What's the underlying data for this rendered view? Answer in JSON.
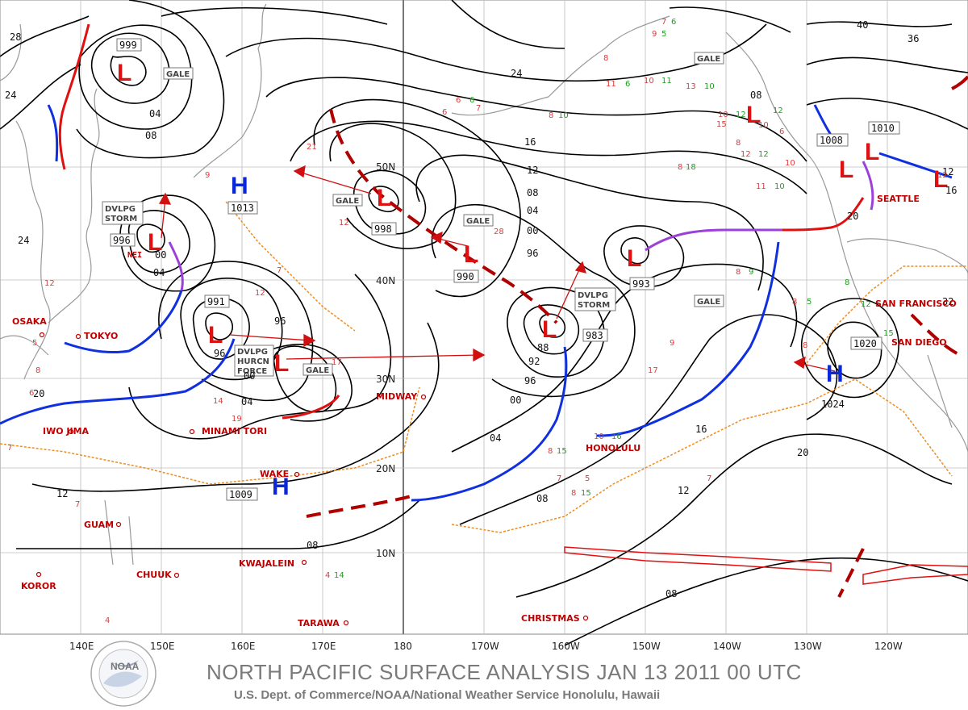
{
  "title": "NORTH PACIFIC SURFACE ANALYSIS JAN 13 2011 00 UTC",
  "subtitle": "U.S. Dept. of Commerce/NOAA/National Weather Service Honolulu, Hawaii",
  "logo_text": "NOAA",
  "longitude_labels": [
    "140E",
    "150E",
    "160E",
    "170E",
    "180",
    "170W",
    "160W",
    "150W",
    "140W",
    "130W",
    "120W"
  ],
  "latitude_labels": [
    "50N",
    "40N",
    "30N",
    "20N",
    "10N"
  ],
  "places": {
    "osaka": "OSAKA",
    "tokyo": "TOKYO",
    "iwojima": "IWO JIMA",
    "minamitori": "MINAMI TORI",
    "guam": "GUAM",
    "kwajalein": "KWAJALEIN",
    "chuuk": "CHUUK",
    "koror": "KOROR",
    "tarawa": "TARAWA",
    "wake": "WAKE",
    "midway": "MIDWAY",
    "honolulu": "HONOLULU",
    "christmas": "CHRISTMAS",
    "seattle": "SEATTLE",
    "sanfrancisco": "SAN FRANCISCO",
    "sandiego": "SAN DIEGO"
  },
  "boxed": {
    "gale1": "GALE",
    "gale2": "GALE",
    "gale3": "GALE",
    "gale4": "GALE",
    "gale5": "GALE",
    "gale6": "GALE",
    "dvlpg1a": "DVLPG",
    "dvlpg1b": "STORM",
    "dvlpg2a": "DVLPG",
    "dvlpg2b": "HURCN",
    "dvlpg2c": "FORCE",
    "dvlpg3a": "DVLPG",
    "dvlpg3b": "STORM",
    "p1013": "1013",
    "p998": "998",
    "p990": "990",
    "p993": "993",
    "p996": "996",
    "p983": "983",
    "p991": "991",
    "p1009": "1009",
    "p1010": "1010",
    "p1008": "1008",
    "p1020": "1020",
    "p999": "999",
    "p1024": "1024"
  },
  "isobar_labels": {
    "a28": "28",
    "a24w": "24",
    "a24n": "24",
    "a04": "04",
    "a08": "08",
    "a24c": "24",
    "a16": "16",
    "a12": "12",
    "a08b": "08",
    "a04b": "04",
    "a00": "00",
    "a96": "96",
    "a92": "92",
    "a88": "88",
    "a96b": "96",
    "a00b": "00",
    "a04c": "04",
    "a08c": "08",
    "a12b": "12",
    "a16b": "16",
    "a20": "20",
    "a24e": "24",
    "a20w": "20",
    "a12w": "12",
    "a16w": "16",
    "a08w": "08",
    "a40": "40",
    "a36": "36",
    "a32": "32",
    "a12e": "12",
    "a16e": "16",
    "a96c": "96",
    "a00c": "00",
    "a04d": "04",
    "a00d": "00",
    "a96d": "96",
    "a04e": "04",
    "a08e": "08",
    "a08f": "08",
    "nei": "NEI"
  },
  "symbols": {
    "low": "L",
    "high": "H"
  },
  "colors": {
    "isobar": "#000000",
    "cold_front": "#1030e0",
    "warm_front": "#e01010",
    "occluded": "#9b40d8",
    "trough": "#b00000",
    "ridge": "#f08c1e",
    "wind_barb": "#28a8e0",
    "obs_red": "#e03b3b",
    "obs_green": "#1aa31a"
  }
}
